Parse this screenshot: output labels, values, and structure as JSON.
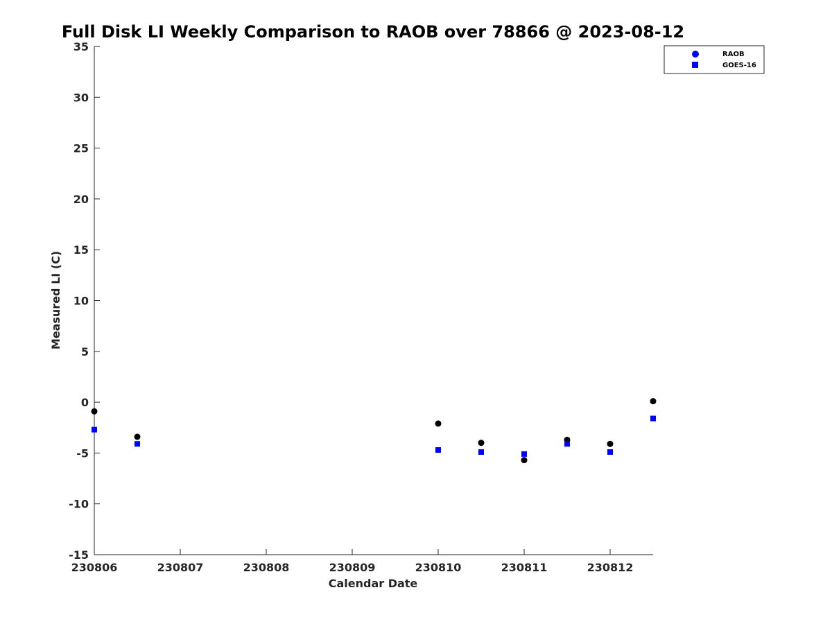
{
  "chart_data": {
    "type": "scatter",
    "title": "Full Disk LI Weekly Comparison to RAOB over 78866 @ 2023-08-12",
    "xlabel": "Calendar Date",
    "ylabel": "Measured LI (C)",
    "xlim": [
      "2023-08-06",
      "2023-08-12T12:00"
    ],
    "ylim": [
      -15,
      35
    ],
    "x_ticks": [
      "230806",
      "230807",
      "230808",
      "230809",
      "230810",
      "230811",
      "230812"
    ],
    "y_ticks": [
      -15,
      -10,
      -5,
      0,
      5,
      10,
      15,
      20,
      25,
      30,
      35
    ],
    "grid": false,
    "legend_position": "top-right",
    "series": [
      {
        "name": "RAOB",
        "marker": "circle",
        "color": "#000000",
        "legend_color": "#0000ff",
        "points": [
          {
            "x": "2023-08-06T00:00",
            "y": -0.9
          },
          {
            "x": "2023-08-06T12:00",
            "y": -3.4
          },
          {
            "x": "2023-08-10T00:00",
            "y": -2.1
          },
          {
            "x": "2023-08-10T12:00",
            "y": -4.0
          },
          {
            "x": "2023-08-11T00:00",
            "y": -5.7
          },
          {
            "x": "2023-08-11T12:00",
            "y": -3.7
          },
          {
            "x": "2023-08-12T00:00",
            "y": -4.1
          },
          {
            "x": "2023-08-12T12:00",
            "y": 0.1
          }
        ]
      },
      {
        "name": "GOES-16",
        "marker": "square",
        "color": "#0000ff",
        "legend_color": "#0000ff",
        "points": [
          {
            "x": "2023-08-06T00:00",
            "y": -2.7
          },
          {
            "x": "2023-08-06T12:00",
            "y": -4.1
          },
          {
            "x": "2023-08-10T00:00",
            "y": -4.7
          },
          {
            "x": "2023-08-10T12:00",
            "y": -4.9
          },
          {
            "x": "2023-08-11T00:00",
            "y": -5.1
          },
          {
            "x": "2023-08-11T12:00",
            "y": -4.1
          },
          {
            "x": "2023-08-12T00:00",
            "y": -4.9
          },
          {
            "x": "2023-08-12T12:00",
            "y": -1.6
          }
        ]
      }
    ]
  }
}
